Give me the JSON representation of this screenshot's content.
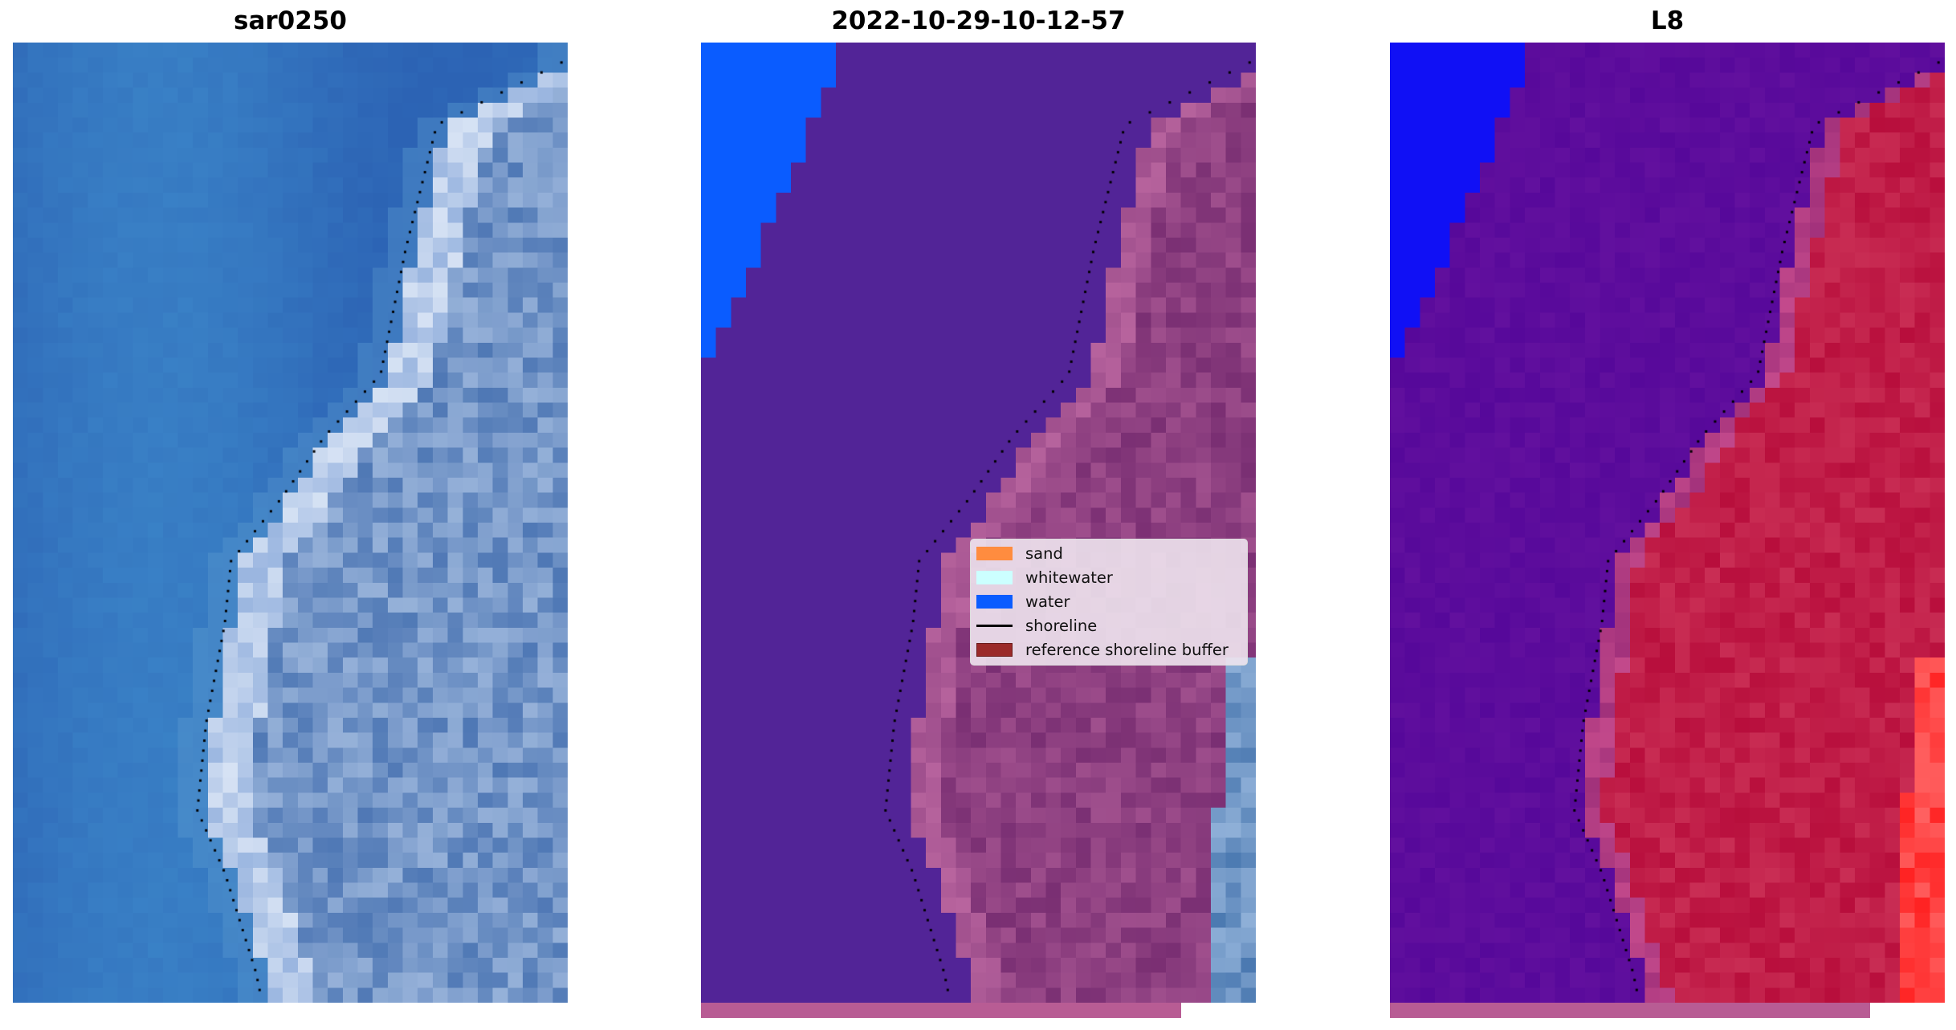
{
  "panels": [
    {
      "title": "sar0250",
      "kind": "rgb"
    },
    {
      "title": "2022-10-29-10-12-57",
      "kind": "classified"
    },
    {
      "title": "L8",
      "kind": "index"
    }
  ],
  "legend": {
    "items": [
      {
        "label": "sand",
        "color": "#ff8c3f",
        "type": "patch"
      },
      {
        "label": "whitewater",
        "color": "#ccffff",
        "type": "patch"
      },
      {
        "label": "water",
        "color": "#0a5cff",
        "type": "patch"
      },
      {
        "label": "shoreline",
        "color": "#000000",
        "type": "line"
      },
      {
        "label": "reference shoreline buffer",
        "color": "#9b2a2a",
        "type": "patch"
      }
    ]
  },
  "colors": {
    "buffer_strip": "#b85c94",
    "classified_sea": "#522497",
    "classified_water": "#0a5cff",
    "index_water": "#1010f5",
    "index_sea": "#5a0a9a",
    "index_land": "#c0143c"
  }
}
